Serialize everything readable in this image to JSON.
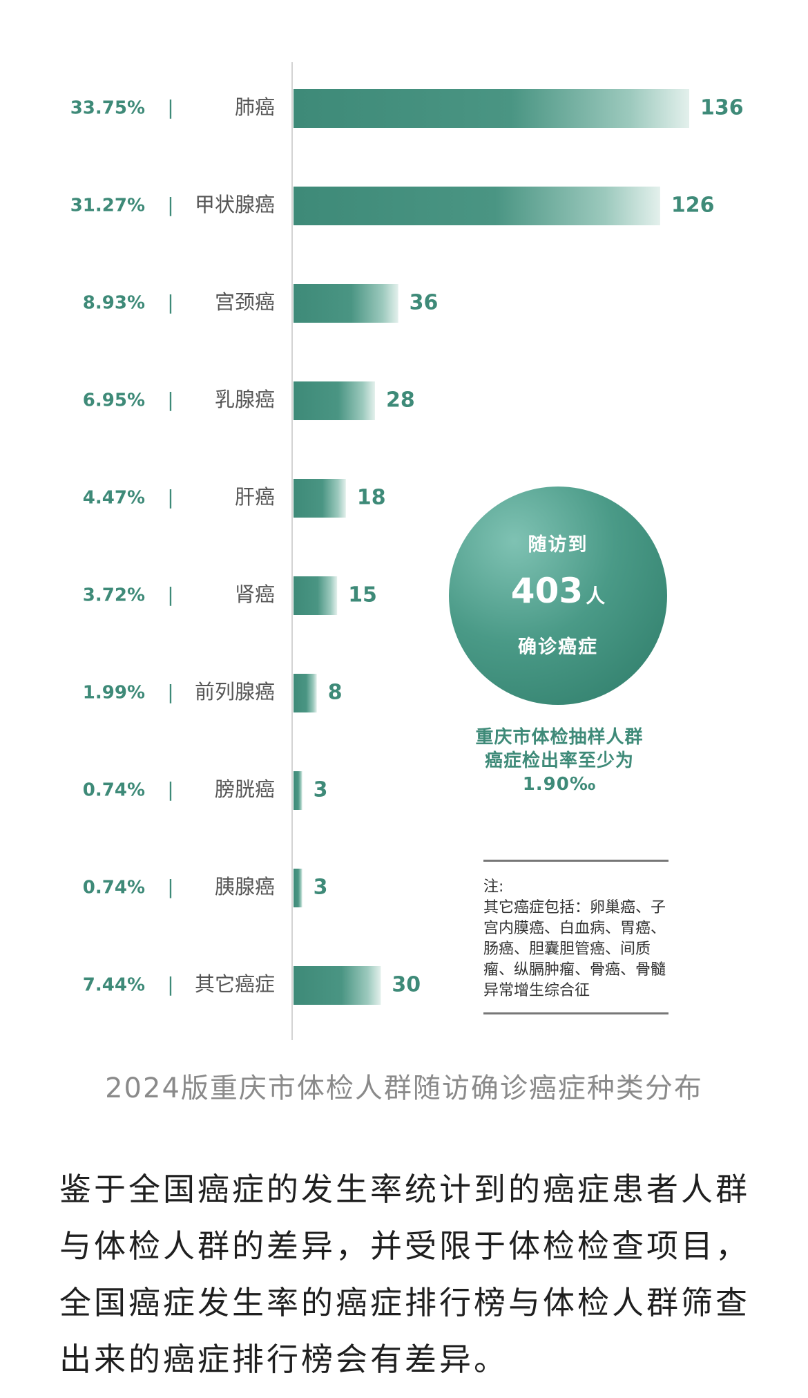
{
  "chart_data": {
    "type": "bar",
    "orientation": "horizontal",
    "title": "2024版重庆市体检人群随访确诊癌症种类分布",
    "categories": [
      "肺癌",
      "甲状腺癌",
      "宫颈癌",
      "乳腺癌",
      "肝癌",
      "肾癌",
      "前列腺癌",
      "膀胱癌",
      "胰腺癌",
      "其它癌症"
    ],
    "values": [
      136,
      126,
      36,
      28,
      18,
      15,
      8,
      3,
      3,
      30
    ],
    "percentages": [
      "33.75%",
      "31.27%",
      "8.93%",
      "6.95%",
      "4.47%",
      "3.72%",
      "1.99%",
      "0.74%",
      "0.74%",
      "7.44%"
    ],
    "separator": "|",
    "xlim": [
      0,
      136
    ],
    "colors": {
      "bar": "#3e8a78",
      "text": "#3e8a78"
    }
  },
  "badge": {
    "line1": "随访到",
    "number": "403",
    "unit": "人",
    "line3": "确诊癌症"
  },
  "rate_text": [
    "重庆市体检抽样人群",
    "癌症检出率至少为",
    "1.90‰"
  ],
  "note": {
    "title": "注:",
    "body": "其它癌症包括：卵巢癌、子宫内膜癌、白血病、胃癌、肠癌、胆囊胆管癌、间质瘤、纵膈肿瘤、骨癌、骨髓异常增生综合征"
  },
  "caption": "2024版重庆市体检人群随访确诊癌症种类分布",
  "paragraph": "鉴于全国癌症的发生率统计到的癌症患者人群与体检人群的差异，并受限于体检检查项目，全国癌症发生率的癌症排行榜与体检人群筛查出来的癌症排行榜会有差异。"
}
